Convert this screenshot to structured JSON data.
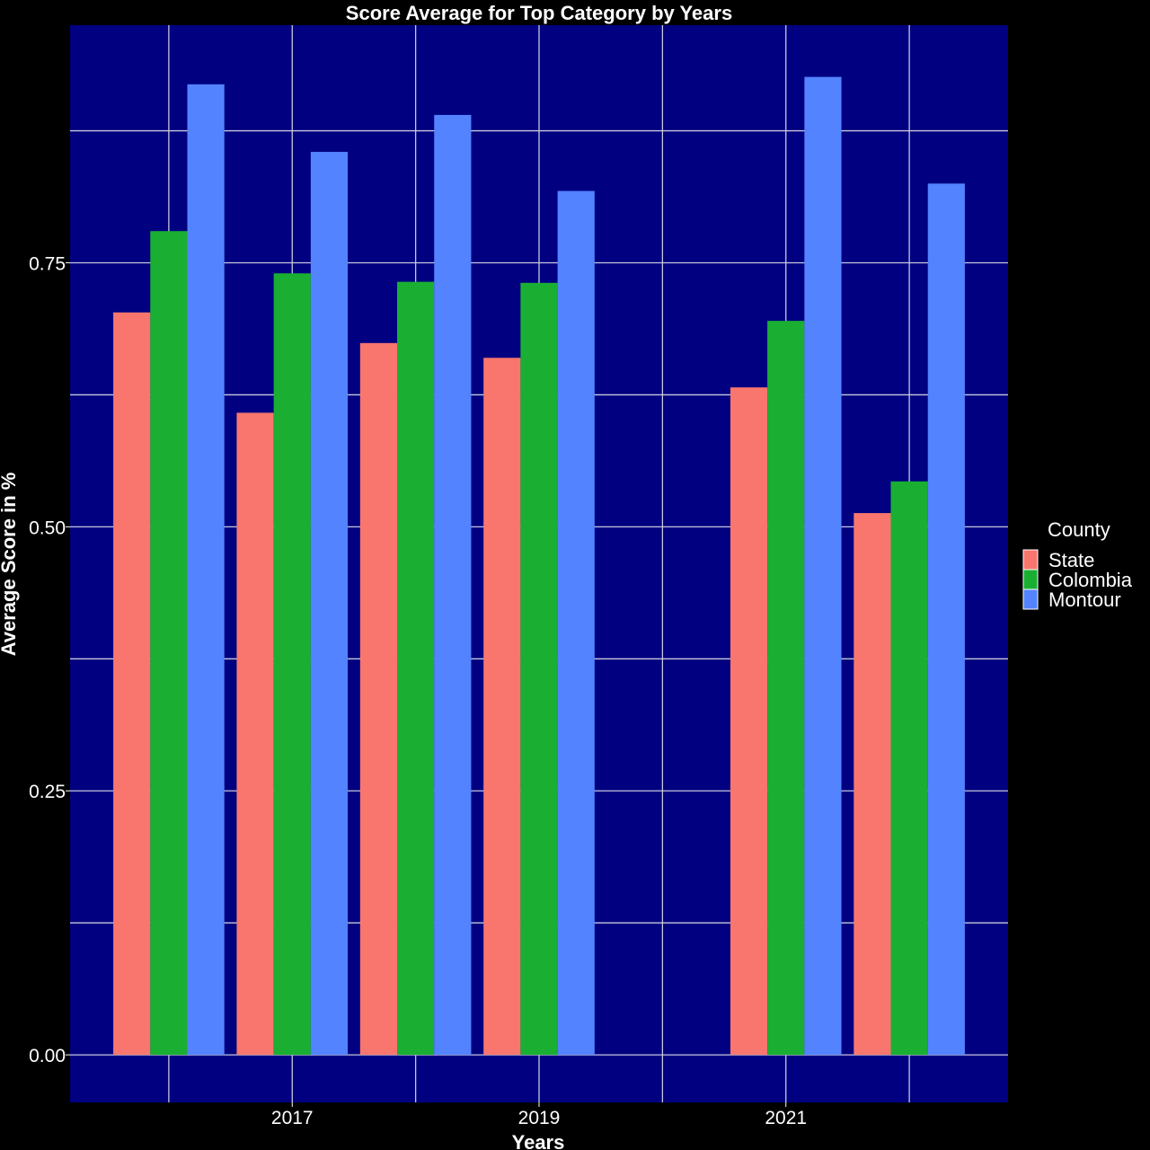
{
  "chart_data": {
    "type": "bar",
    "title": "Score Average for Top Category by Years",
    "xlabel": "Years",
    "ylabel": "Average Score in %",
    "x": [
      2016,
      2017,
      2018,
      2019,
      2020,
      2021,
      2022
    ],
    "x_tick_labels": [
      "2017",
      "2019",
      "2021"
    ],
    "x_tick_values": [
      2017,
      2019,
      2021
    ],
    "xlim": [
      2015.2,
      2022.8
    ],
    "ylim": [
      -0.045,
      0.975
    ],
    "y_ticks": [
      0.0,
      0.25,
      0.5,
      0.75
    ],
    "y_tick_labels": [
      "0.00",
      "0.25",
      "0.50",
      "0.75"
    ],
    "legend_title": "County",
    "legend_position": "right",
    "grid": true,
    "background_color": "#000080",
    "series": [
      {
        "name": "State",
        "color": "#f8766d",
        "values": [
          0.703,
          0.608,
          0.674,
          0.66,
          null,
          0.632,
          0.513
        ]
      },
      {
        "name": "Colombia",
        "color": "#1aaf33",
        "values": [
          0.78,
          0.74,
          0.732,
          0.731,
          null,
          0.695,
          0.543
        ]
      },
      {
        "name": "Montour",
        "color": "#5383ff",
        "values": [
          0.919,
          0.855,
          0.89,
          0.818,
          null,
          0.926,
          0.825
        ]
      }
    ]
  }
}
